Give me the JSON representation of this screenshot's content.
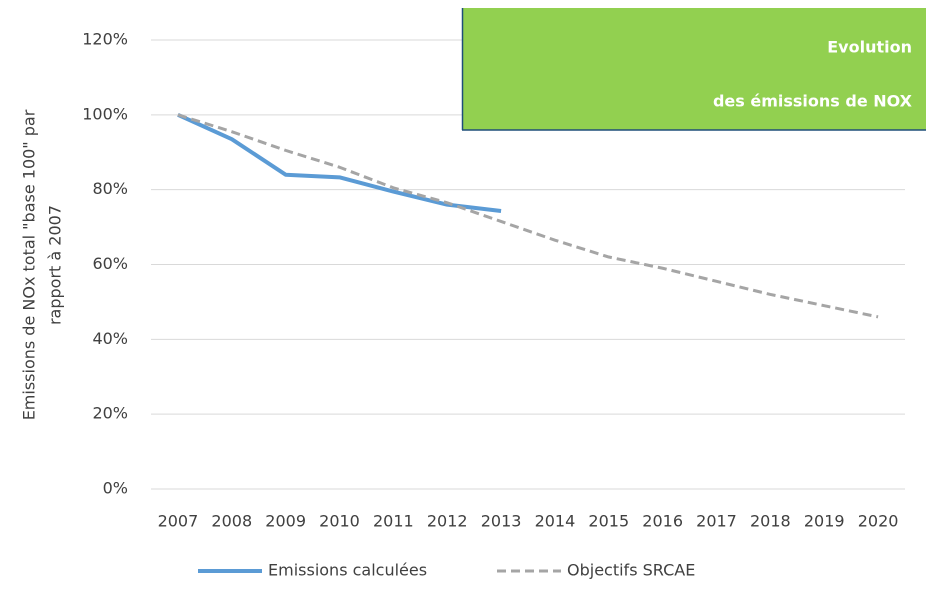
{
  "chart_data": {
    "type": "line",
    "title": [
      "Evolution",
      "des émissions de NOX"
    ],
    "y_label": [
      "Emissions  de NOx total \"base 100\" par",
      "rapport à 2007"
    ],
    "categories": [
      "2007",
      "2008",
      "2009",
      "2010",
      "2011",
      "2012",
      "2013",
      "2014",
      "2015",
      "2016",
      "2017",
      "2018",
      "2019",
      "2020"
    ],
    "series": [
      {
        "name": "Emissions calculées",
        "color": "#5b9bd5",
        "dash": false,
        "values": [
          100,
          93.5,
          84,
          83.3,
          79.5,
          76,
          74.3,
          null,
          null,
          null,
          null,
          null,
          null,
          null
        ]
      },
      {
        "name": "Objectifs SRCAE",
        "color": "#a5a5a5",
        "dash": true,
        "values": [
          100,
          95.5,
          90.5,
          86,
          80.5,
          76.5,
          71.5,
          66.5,
          62,
          59,
          55.5,
          52,
          49,
          46
        ]
      }
    ],
    "ylim": [
      0,
      120
    ],
    "yticks": [
      {
        "value": 0,
        "label": "0%"
      },
      {
        "value": 20,
        "label": "20%"
      },
      {
        "value": 40,
        "label": "40%"
      },
      {
        "value": 60,
        "label": "60%"
      },
      {
        "value": 80,
        "label": "80%"
      },
      {
        "value": 100,
        "label": "100%"
      },
      {
        "value": 120,
        "label": "120%"
      }
    ],
    "grid": true,
    "legend": "bottom",
    "title_color": "#92d050"
  }
}
